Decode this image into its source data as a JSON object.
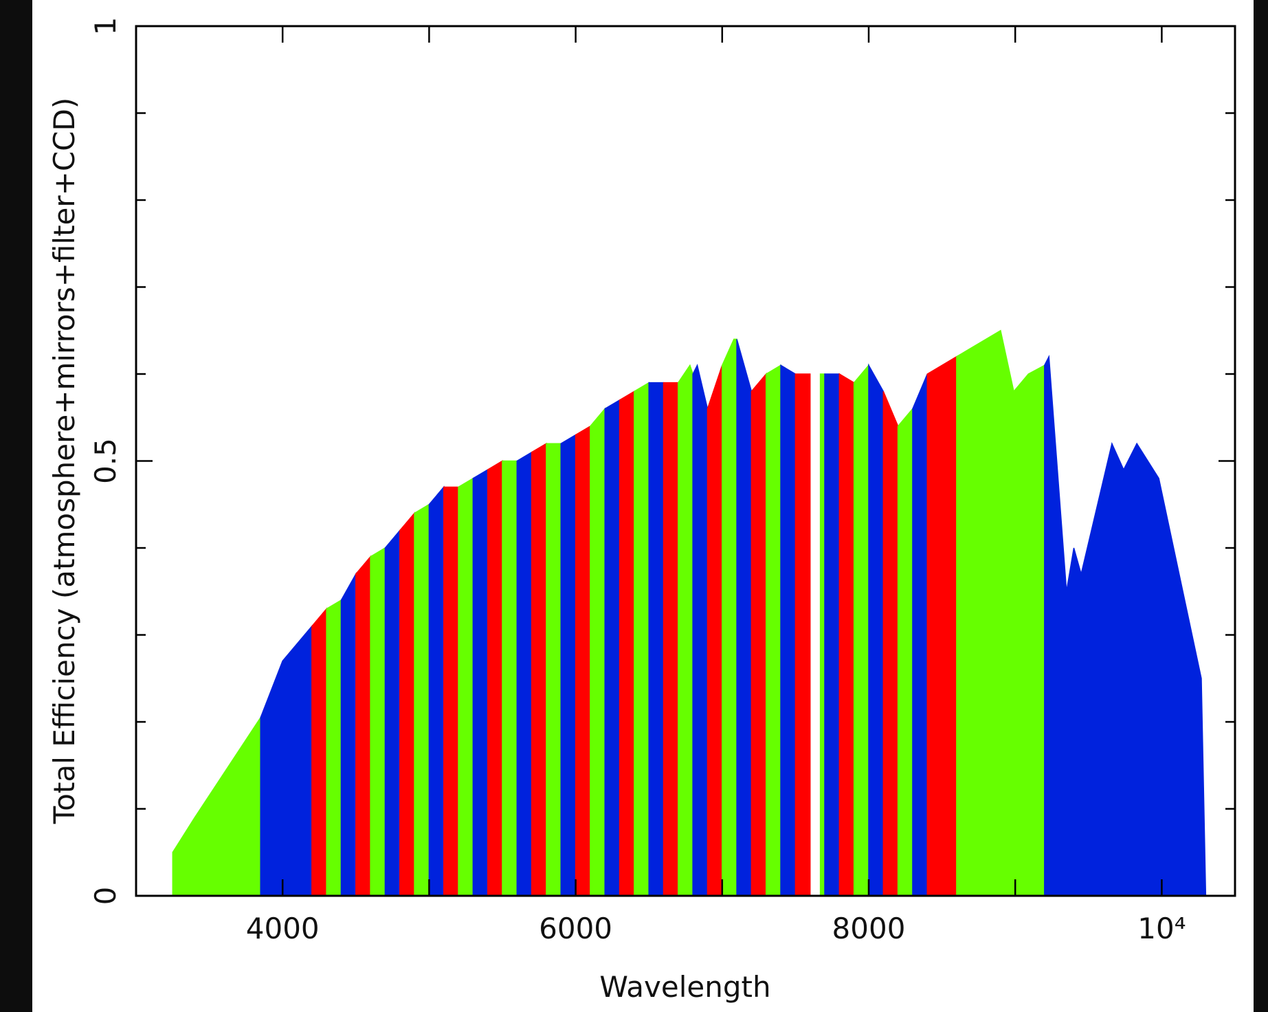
{
  "chart_data": {
    "type": "area",
    "xlabel": "Wavelength",
    "ylabel": "Total Efficiency (atmosphere+mirrors+filter+CCD)",
    "xlim": [
      3000,
      10500
    ],
    "ylim": [
      0,
      1
    ],
    "xticks": [
      4000,
      6000,
      8000,
      {
        "value": 10000,
        "label": "10⁴"
      }
    ],
    "xminor": [
      5000,
      7000,
      9000
    ],
    "yticks": [
      0,
      0.5,
      1
    ],
    "yminor": [
      0.1,
      0.2,
      0.3,
      0.4,
      0.6,
      0.7,
      0.8,
      0.9
    ],
    "series": [
      {
        "color": "#66ff00",
        "x": [
          3250,
          3250,
          3400,
          3850
        ],
        "values": [
          0,
          0.05,
          0.09,
          0.205
        ]
      },
      {
        "color": "#0022dd",
        "x": [
          3850,
          4000,
          4200
        ],
        "values": [
          0.205,
          0.27,
          0.31
        ]
      },
      {
        "color": "#ff0000",
        "x": [
          4200,
          4300
        ],
        "values": [
          0.31,
          0.33
        ]
      },
      {
        "color": "#66ff00",
        "x": [
          4300,
          4400
        ],
        "values": [
          0.33,
          0.34
        ]
      },
      {
        "color": "#0022dd",
        "x": [
          4400,
          4500
        ],
        "values": [
          0.34,
          0.37
        ]
      },
      {
        "color": "#ff0000",
        "x": [
          4500,
          4600
        ],
        "values": [
          0.37,
          0.39
        ]
      },
      {
        "color": "#66ff00",
        "x": [
          4600,
          4700
        ],
        "values": [
          0.39,
          0.4
        ]
      },
      {
        "color": "#0022dd",
        "x": [
          4700,
          4800
        ],
        "values": [
          0.4,
          0.42
        ]
      },
      {
        "color": "#ff0000",
        "x": [
          4800,
          4900
        ],
        "values": [
          0.42,
          0.44
        ]
      },
      {
        "color": "#66ff00",
        "x": [
          4900,
          5000
        ],
        "values": [
          0.44,
          0.45
        ]
      },
      {
        "color": "#0022dd",
        "x": [
          5000,
          5100
        ],
        "values": [
          0.45,
          0.47
        ]
      },
      {
        "color": "#ff0000",
        "x": [
          5100,
          5200
        ],
        "values": [
          0.47,
          0.47
        ]
      },
      {
        "color": "#66ff00",
        "x": [
          5200,
          5300
        ],
        "values": [
          0.47,
          0.48
        ]
      },
      {
        "color": "#0022dd",
        "x": [
          5300,
          5400
        ],
        "values": [
          0.48,
          0.49
        ]
      },
      {
        "color": "#ff0000",
        "x": [
          5400,
          5500
        ],
        "values": [
          0.49,
          0.5
        ]
      },
      {
        "color": "#66ff00",
        "x": [
          5500,
          5600
        ],
        "values": [
          0.5,
          0.5
        ]
      },
      {
        "color": "#0022dd",
        "x": [
          5600,
          5700
        ],
        "values": [
          0.5,
          0.51
        ]
      },
      {
        "color": "#ff0000",
        "x": [
          5700,
          5800
        ],
        "values": [
          0.51,
          0.52
        ]
      },
      {
        "color": "#66ff00",
        "x": [
          5800,
          5900
        ],
        "values": [
          0.52,
          0.52
        ]
      },
      {
        "color": "#0022dd",
        "x": [
          5900,
          6000
        ],
        "values": [
          0.52,
          0.53
        ]
      },
      {
        "color": "#ff0000",
        "x": [
          6000,
          6100
        ],
        "values": [
          0.53,
          0.54
        ]
      },
      {
        "color": "#66ff00",
        "x": [
          6100,
          6200
        ],
        "values": [
          0.54,
          0.56
        ]
      },
      {
        "color": "#0022dd",
        "x": [
          6200,
          6300
        ],
        "values": [
          0.56,
          0.57
        ]
      },
      {
        "color": "#ff0000",
        "x": [
          6300,
          6400
        ],
        "values": [
          0.57,
          0.58
        ]
      },
      {
        "color": "#66ff00",
        "x": [
          6400,
          6500
        ],
        "values": [
          0.58,
          0.59
        ]
      },
      {
        "color": "#0022dd",
        "x": [
          6500,
          6600
        ],
        "values": [
          0.59,
          0.59
        ]
      },
      {
        "color": "#ff0000",
        "x": [
          6600,
          6700
        ],
        "values": [
          0.59,
          0.59
        ]
      },
      {
        "color": "#66ff00",
        "x": [
          6700,
          6780,
          6800
        ],
        "values": [
          0.59,
          0.61,
          0.6
        ]
      },
      {
        "color": "#0022dd",
        "x": [
          6800,
          6830,
          6900
        ],
        "values": [
          0.6,
          0.61,
          0.56
        ]
      },
      {
        "color": "#ff0000",
        "x": [
          6900,
          7000
        ],
        "values": [
          0.56,
          0.61
        ]
      },
      {
        "color": "#66ff00",
        "x": [
          7000,
          7080,
          7100
        ],
        "values": [
          0.61,
          0.64,
          0.64
        ]
      },
      {
        "color": "#0022dd",
        "x": [
          7100,
          7200
        ],
        "values": [
          0.64,
          0.58
        ]
      },
      {
        "color": "#ff0000",
        "x": [
          7200,
          7300
        ],
        "values": [
          0.58,
          0.6
        ]
      },
      {
        "color": "#66ff00",
        "x": [
          7300,
          7400
        ],
        "values": [
          0.6,
          0.61
        ]
      },
      {
        "color": "#0022dd",
        "x": [
          7400,
          7500
        ],
        "values": [
          0.61,
          0.6
        ]
      },
      {
        "color": "#ff0000",
        "x": [
          7500,
          7600
        ],
        "values": [
          0.6,
          0.6
        ]
      },
      {
        "color": "#66ff00",
        "x": [
          7670,
          7700
        ],
        "values": [
          0.6,
          0.6
        ]
      },
      {
        "color": "#0022dd",
        "x": [
          7700,
          7800
        ],
        "values": [
          0.6,
          0.6
        ]
      },
      {
        "color": "#ff0000",
        "x": [
          7800,
          7900
        ],
        "values": [
          0.6,
          0.59
        ]
      },
      {
        "color": "#66ff00",
        "x": [
          7900,
          8000
        ],
        "values": [
          0.59,
          0.61
        ]
      },
      {
        "color": "#0022dd",
        "x": [
          8000,
          8100
        ],
        "values": [
          0.61,
          0.58
        ]
      },
      {
        "color": "#ff0000",
        "x": [
          8100,
          8200
        ],
        "values": [
          0.58,
          0.54
        ]
      },
      {
        "color": "#66ff00",
        "x": [
          8200,
          8300
        ],
        "values": [
          0.54,
          0.56
        ]
      },
      {
        "color": "#0022dd",
        "x": [
          8300,
          8400
        ],
        "values": [
          0.56,
          0.6
        ]
      },
      {
        "color": "#ff0000",
        "x": [
          8400,
          8600
        ],
        "values": [
          0.6,
          0.62
        ]
      },
      {
        "color": "#66ff00",
        "x": [
          8600,
          8900,
          8990,
          9090,
          9200
        ],
        "values": [
          0.62,
          0.65,
          0.58,
          0.6,
          0.61
        ]
      },
      {
        "color": "#0022dd",
        "x": [
          9200,
          9230,
          9350,
          9400,
          9450,
          9660,
          9740,
          9830,
          9980,
          10270,
          10300
        ],
        "values": [
          0.61,
          0.62,
          0.35,
          0.4,
          0.37,
          0.52,
          0.49,
          0.52,
          0.48,
          0.25,
          0
        ]
      }
    ]
  }
}
